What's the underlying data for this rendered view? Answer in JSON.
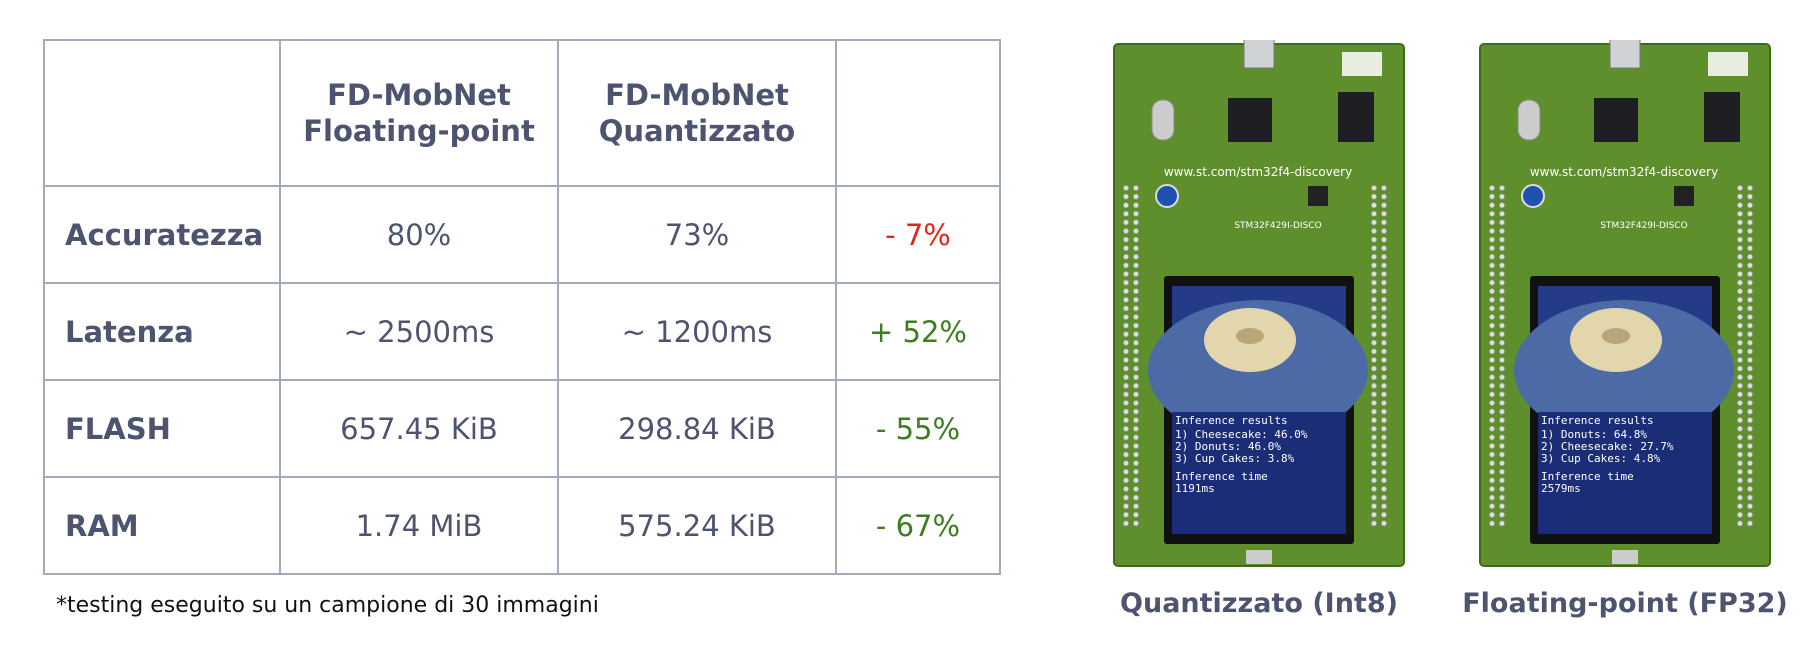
{
  "table": {
    "header": [
      "",
      "FD-MobNet Floating-point",
      "FD-MobNet Quantizzato",
      ""
    ],
    "rows": [
      [
        "Accuratezza",
        "80%",
        "73%",
        "- 7%"
      ],
      [
        "Latenza",
        "~ 2500ms",
        "~ 1200ms",
        "+ 52%"
      ],
      [
        "FLASH",
        "657.45 KiB",
        "298.84 KiB",
        "- 55%"
      ],
      [
        "RAM",
        "1.74 MiB",
        "575.24 KiB",
        "- 67%"
      ]
    ]
  },
  "footnote": "*testing eseguito su un campione di 30 immagini",
  "boards": [
    {
      "caption": "Quantizzato (Int8)",
      "url": "www.st.com/stm32f4-discovery",
      "model": "STM32F429I-DISCO",
      "screen": [
        "Inference results",
        "1) Cheesecake: 46.0%",
        "2) Donuts: 46.0%",
        "3) Cup Cakes: 3.8%",
        "Inference time",
        "1191ms"
      ]
    },
    {
      "caption": "Floating-point (FP32)",
      "url": "www.st.com/stm32f4-discovery",
      "model": "STM32F429I-DISCO",
      "screen": [
        "Inference results",
        "1) Donuts: 64.8%",
        "2) Cheesecake: 27.7%",
        "3) Cup Cakes: 4.8%",
        "Inference time",
        "2579ms"
      ]
    }
  ]
}
